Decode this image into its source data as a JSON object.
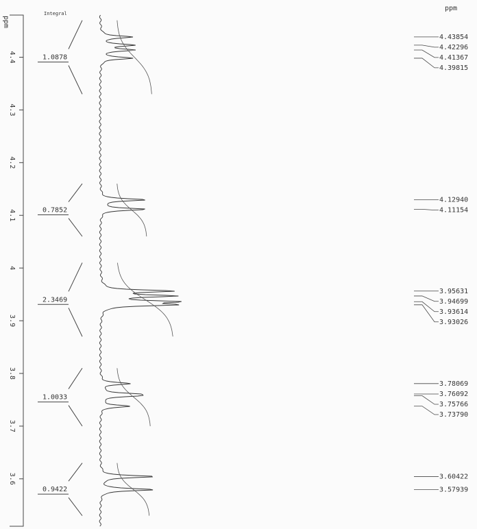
{
  "chart_data": {
    "type": "nmr",
    "axis_label": "ppm",
    "peak_axis_label": "ppm",
    "integral_label": "Integral",
    "ylim": [
      4.48,
      3.51
    ],
    "yticks": [
      4.4,
      4.3,
      4.2,
      4.1,
      4.0,
      3.9,
      3.8,
      3.7,
      3.6
    ],
    "peaks": {
      "values": [
        4.43854,
        4.42296,
        4.41367,
        4.39815,
        4.1294,
        4.11154,
        3.95631,
        3.94699,
        3.93614,
        3.93026,
        3.78069,
        3.76092,
        3.75766,
        3.7379,
        3.60422,
        3.57939
      ],
      "value_labels": [
        "4.43854",
        "4.42296",
        "4.41367",
        "4.39815",
        "4.12940",
        "4.11154",
        "3.95631",
        "3.94699",
        "3.93614",
        "3.93026",
        "3.78069",
        "3.76092",
        "3.75766",
        "3.73790",
        "3.60422",
        "3.57939"
      ]
    },
    "integrals": {
      "values": [
        1.0878,
        0.7852,
        2.3469,
        1.0033,
        0.9422
      ],
      "from": [
        4.47,
        4.16,
        4.01,
        3.81,
        3.63
      ],
      "to": [
        4.33,
        4.06,
        3.87,
        3.7,
        3.53
      ]
    },
    "color": "#333333"
  }
}
